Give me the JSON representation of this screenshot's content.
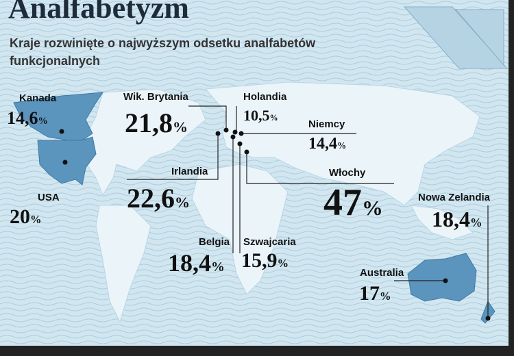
{
  "header": {
    "title": "Analfabetyzm",
    "subtitle": "Kraje rozwinięte o najwyższym odsetku analfabetów funkcjonalnych"
  },
  "unit": "%",
  "countries": [
    {
      "name": "Kanada",
      "value": "14,6"
    },
    {
      "name": "Wik. Brytania",
      "value": "21,8"
    },
    {
      "name": "Holandia",
      "value": "10,5"
    },
    {
      "name": "Niemcy",
      "value": "14,4"
    },
    {
      "name": "Irlandia",
      "value": "22,6"
    },
    {
      "name": "USA",
      "value": "20"
    },
    {
      "name": "Włochy",
      "value": "47"
    },
    {
      "name": "Nowa Zelandia",
      "value": "18,4"
    },
    {
      "name": "Belgia",
      "value": "18,4"
    },
    {
      "name": "Szwajcaria",
      "value": "15,9"
    },
    {
      "name": "Australia",
      "value": "17"
    }
  ]
}
